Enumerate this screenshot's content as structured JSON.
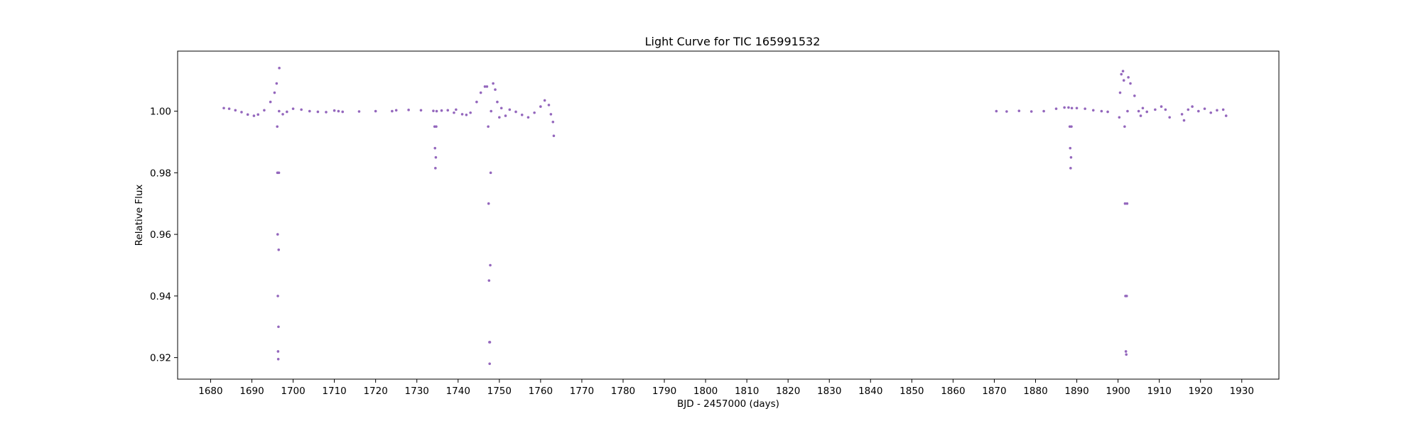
{
  "chart_data": {
    "type": "scatter",
    "title": "Light Curve for TIC 165991532",
    "xlabel": "BJD - 2457000 (days)",
    "ylabel": "Relative Flux",
    "xlim": [
      1672,
      1939
    ],
    "ylim": [
      0.913,
      1.0195
    ],
    "x_ticks": [
      1680,
      1690,
      1700,
      1710,
      1720,
      1730,
      1740,
      1750,
      1760,
      1770,
      1780,
      1790,
      1800,
      1810,
      1820,
      1830,
      1840,
      1850,
      1860,
      1870,
      1880,
      1890,
      1900,
      1910,
      1920,
      1930
    ],
    "x_tick_labels": [
      "1680",
      "1690",
      "1700",
      "1710",
      "1720",
      "1730",
      "1740",
      "1750",
      "1760",
      "1770",
      "1780",
      "1790",
      "1800",
      "1810",
      "1820",
      "1830",
      "1840",
      "1850",
      "1860",
      "1870",
      "1880",
      "1890",
      "1900",
      "1910",
      "1920",
      "1930"
    ],
    "y_ticks": [
      0.92,
      0.94,
      0.96,
      0.98,
      1.0
    ],
    "y_tick_labels": [
      "0.92",
      "0.94",
      "0.96",
      "0.98",
      "1.00"
    ],
    "grid": false,
    "legend": "none",
    "marker_color": "#9467bd",
    "series": [
      {
        "points": [
          [
            1683.2,
            1.001
          ],
          [
            1684.5,
            1.0008
          ],
          [
            1686.0,
            1.0003
          ],
          [
            1687.5,
            0.9997
          ],
          [
            1689.0,
            0.9989
          ],
          [
            1690.5,
            0.9985
          ],
          [
            1691.5,
            0.9989
          ],
          [
            1693.0,
            1.0003
          ],
          [
            1694.5,
            1.003
          ],
          [
            1695.5,
            1.006
          ],
          [
            1696.0,
            1.009
          ],
          [
            1696.15,
            0.995
          ],
          [
            1696.2,
            0.98
          ],
          [
            1696.25,
            0.96
          ],
          [
            1696.3,
            0.94
          ],
          [
            1696.35,
            0.922
          ],
          [
            1696.4,
            0.9195
          ],
          [
            1696.45,
            0.93
          ],
          [
            1696.5,
            0.955
          ],
          [
            1696.55,
            0.98
          ],
          [
            1696.6,
            1.0
          ],
          [
            1696.65,
            1.014
          ],
          [
            1697.5,
            0.999
          ],
          [
            1698.5,
            0.9998
          ],
          [
            1700.0,
            1.0008
          ],
          [
            1702.0,
            1.0005
          ],
          [
            1704.0,
            1.0
          ],
          [
            1706.0,
            0.9998
          ],
          [
            1708.0,
            0.9997
          ],
          [
            1710.0,
            1.0002
          ],
          [
            1711.0,
            1.0
          ],
          [
            1712.0,
            0.9998
          ],
          [
            1716.0,
            0.9999
          ],
          [
            1720.0,
            1.0
          ],
          [
            1724.0,
            1.0
          ],
          [
            1725.0,
            1.0003
          ],
          [
            1728.0,
            1.0004
          ],
          [
            1731.0,
            1.0003
          ],
          [
            1734.0,
            1.0001
          ],
          [
            1734.3,
            0.995
          ],
          [
            1734.4,
            0.988
          ],
          [
            1734.5,
            0.9815
          ],
          [
            1734.6,
            0.985
          ],
          [
            1734.7,
            0.995
          ],
          [
            1734.8,
            1.0
          ],
          [
            1736.0,
            1.0002
          ],
          [
            1737.5,
            1.0003
          ],
          [
            1739.0,
            0.9995
          ],
          [
            1739.5,
            1.0005
          ],
          [
            1741.0,
            0.999
          ],
          [
            1742.0,
            0.9988
          ],
          [
            1743.0,
            0.9995
          ],
          [
            1744.5,
            1.003
          ],
          [
            1745.5,
            1.006
          ],
          [
            1746.5,
            1.008
          ],
          [
            1747.0,
            1.008
          ],
          [
            1747.3,
            0.995
          ],
          [
            1747.4,
            0.97
          ],
          [
            1747.5,
            0.945
          ],
          [
            1747.6,
            0.925
          ],
          [
            1747.65,
            0.918
          ],
          [
            1747.7,
            0.925
          ],
          [
            1747.8,
            0.95
          ],
          [
            1747.9,
            0.98
          ],
          [
            1748.0,
            1.0
          ],
          [
            1748.5,
            1.009
          ],
          [
            1749.0,
            1.007
          ],
          [
            1749.5,
            1.003
          ],
          [
            1750.0,
            0.998
          ],
          [
            1750.5,
            1.001
          ],
          [
            1751.5,
            0.9985
          ],
          [
            1752.5,
            1.0005
          ],
          [
            1754.0,
            0.9998
          ],
          [
            1755.5,
            0.9988
          ],
          [
            1757.0,
            0.998
          ],
          [
            1758.5,
            0.9995
          ],
          [
            1760.0,
            1.0015
          ],
          [
            1761.0,
            1.0035
          ],
          [
            1762.0,
            1.002
          ],
          [
            1762.5,
            0.999
          ],
          [
            1763.0,
            0.9965
          ],
          [
            1763.2,
            0.992
          ],
          [
            1870.5,
            1.0
          ],
          [
            1873.0,
            0.9999
          ],
          [
            1876.0,
            1.0001
          ],
          [
            1879.0,
            0.9999
          ],
          [
            1882.0,
            1.0
          ],
          [
            1885.0,
            1.0008
          ],
          [
            1887.0,
            1.0012
          ],
          [
            1888.0,
            1.0012
          ],
          [
            1888.3,
            0.995
          ],
          [
            1888.4,
            0.988
          ],
          [
            1888.5,
            0.9815
          ],
          [
            1888.6,
            0.985
          ],
          [
            1888.7,
            0.995
          ],
          [
            1888.8,
            1.001
          ],
          [
            1890.0,
            1.001
          ],
          [
            1892.0,
            1.0008
          ],
          [
            1894.0,
            1.0003
          ],
          [
            1896.0,
            1.0
          ],
          [
            1897.5,
            0.9998
          ],
          [
            1900.3,
            0.998
          ],
          [
            1900.5,
            1.006
          ],
          [
            1900.8,
            1.012
          ],
          [
            1901.2,
            1.013
          ],
          [
            1901.4,
            1.01
          ],
          [
            1901.6,
            0.995
          ],
          [
            1901.7,
            0.97
          ],
          [
            1901.8,
            0.94
          ],
          [
            1901.9,
            0.922
          ],
          [
            1902.0,
            0.921
          ],
          [
            1902.1,
            0.94
          ],
          [
            1902.2,
            0.97
          ],
          [
            1902.3,
            1.0
          ],
          [
            1902.5,
            1.011
          ],
          [
            1903.0,
            1.009
          ],
          [
            1904.0,
            1.005
          ],
          [
            1905.0,
            1.0
          ],
          [
            1905.5,
            0.9985
          ],
          [
            1906.0,
            1.001
          ],
          [
            1907.0,
            0.9998
          ],
          [
            1909.0,
            1.0005
          ],
          [
            1910.5,
            1.0015
          ],
          [
            1911.5,
            1.0005
          ],
          [
            1912.5,
            0.998
          ],
          [
            1915.5,
            0.999
          ],
          [
            1916.0,
            0.997
          ],
          [
            1917.0,
            1.0005
          ],
          [
            1918.0,
            1.0015
          ],
          [
            1919.5,
            1.0
          ],
          [
            1921.0,
            1.0008
          ],
          [
            1922.5,
            0.9995
          ],
          [
            1924.0,
            1.0003
          ],
          [
            1925.5,
            1.0005
          ],
          [
            1926.2,
            0.9985
          ]
        ]
      }
    ]
  }
}
